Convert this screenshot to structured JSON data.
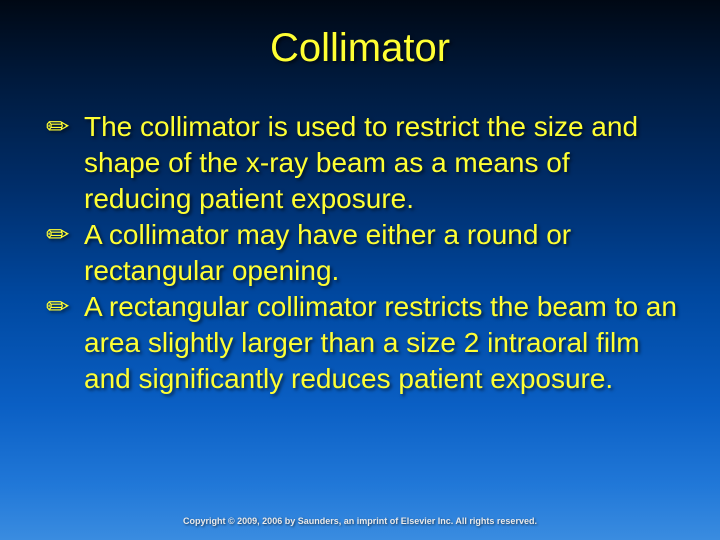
{
  "slide": {
    "title": "Collimator",
    "title_color": "#ffff33",
    "title_fontsize": 40,
    "bullet_glyph": "✏",
    "bullets": [
      {
        "text": "The collimator is used to restrict the size and shape of the x-ray beam as a means of reducing patient exposure."
      },
      {
        "text": "A collimator may have either a round or rectangular opening."
      },
      {
        "text": "A rectangular collimator restricts the beam to an area slightly larger than a size 2 intraoral film and significantly reduces patient exposure."
      }
    ],
    "body_color": "#ffff33",
    "body_fontsize": 28,
    "background_gradient_top": "#000814",
    "background_gradient_bottom": "#3a8ce0",
    "footer": "Copyright © 2009, 2006 by Saunders, an imprint of Elsevier Inc. All rights reserved.",
    "footer_color": "#eaeaea",
    "footer_fontsize": 9
  }
}
